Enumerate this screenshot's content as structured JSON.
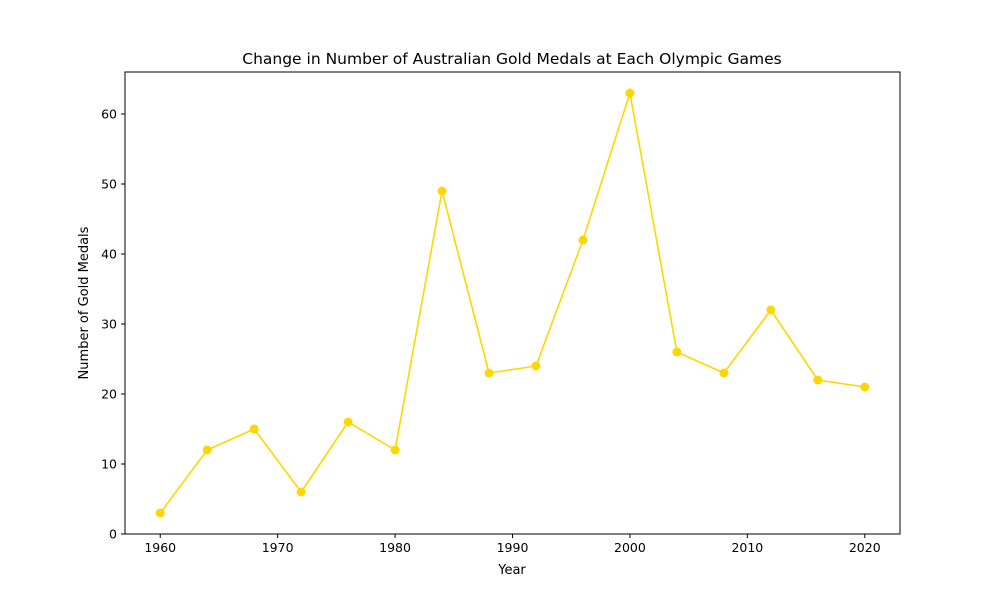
{
  "chart_data": {
    "type": "line",
    "title": "Change in Number of Australian Gold Medals at Each Olympic Games",
    "xlabel": "Year",
    "ylabel": "Number of Gold Medals",
    "x": [
      1960,
      1964,
      1968,
      1972,
      1976,
      1980,
      1984,
      1988,
      1992,
      1996,
      2000,
      2004,
      2008,
      2012,
      2016,
      2020
    ],
    "series": [
      {
        "values": [
          3,
          12,
          15,
          6,
          16,
          12,
          49,
          23,
          24,
          42,
          63,
          26,
          23,
          32,
          22,
          21
        ],
        "color": "#FFD700",
        "marker": "circle"
      }
    ],
    "xlim": [
      1957,
      2023
    ],
    "ylim": [
      0,
      66
    ],
    "xticks": [
      "1960",
      "1970",
      "1980",
      "1990",
      "2000",
      "2010",
      "2020"
    ],
    "yticks": [
      "0",
      "10",
      "20",
      "30",
      "40",
      "50",
      "60"
    ],
    "grid": false,
    "legend": false
  }
}
